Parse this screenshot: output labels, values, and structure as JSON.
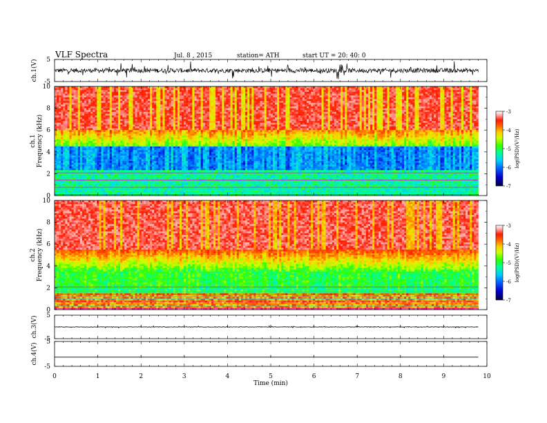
{
  "header": {
    "title": "VLF  Spectra",
    "date": "Jul.  8  , 2015",
    "station": "station= ATH",
    "start": "start  UT  =   20: 40: 0"
  },
  "chart_data": [
    {
      "type": "line",
      "panel": "ch1-waveform",
      "ylabel": "ch.1(V)",
      "ylim": [
        -5,
        5
      ],
      "yticks": [
        "5",
        "-5"
      ],
      "baseline": 0,
      "amplitude": 2.0,
      "x_end": 9.8
    },
    {
      "type": "heatmap",
      "panel": "ch1-spectrogram",
      "ylabel_channel": "ch.1",
      "ylabel": "Frequency  (kHz)",
      "ylim": [
        0,
        10
      ],
      "yticks": [
        "0",
        "2",
        "4",
        "6",
        "8",
        "10"
      ],
      "x_end": 9.8,
      "colorbar_label": "log(PSD)(V²/Hz)",
      "colorbar_ticks": [
        "-3",
        "-4",
        "-5",
        "-6",
        "-7"
      ],
      "clim": [
        -7,
        -3
      ]
    },
    {
      "type": "heatmap",
      "panel": "ch2-spectrogram",
      "ylabel_channel": "ch.2",
      "ylabel": "Frequency  (kHz)",
      "ylim": [
        0,
        10
      ],
      "yticks": [
        "0",
        "2",
        "4",
        "6",
        "8",
        "10"
      ],
      "x_end": 9.8,
      "colorbar_label": "log(PSD)(V²/Hz)",
      "colorbar_ticks": [
        "-3",
        "-4",
        "-5",
        "-6",
        "-7"
      ],
      "clim": [
        -7,
        -3
      ]
    },
    {
      "type": "line",
      "panel": "ch3-waveform",
      "ylabel": "ch.3(V)",
      "ylim": [
        -5,
        5
      ],
      "yticks": [
        "5",
        "-5"
      ],
      "baseline": 0,
      "amplitude": 0.2,
      "x_end": 9.8
    },
    {
      "type": "line",
      "panel": "ch4-waveform",
      "ylabel": "ch.4(V)",
      "ylim": [
        -5,
        5
      ],
      "yticks": [
        "5",
        "-5"
      ],
      "baseline": -1.3,
      "amplitude": 0.0,
      "x_end": 9.8
    }
  ],
  "xaxis": {
    "label": "Time  (min)",
    "ticks": [
      "0",
      "1",
      "2",
      "3",
      "4",
      "5",
      "6",
      "7",
      "8",
      "9",
      "10"
    ],
    "xlim": [
      0,
      10
    ]
  },
  "colors": {
    "colormap": [
      "#000044",
      "#0000cc",
      "#0066ff",
      "#00ccff",
      "#00ff99",
      "#33ff00",
      "#ccff00",
      "#ffcc00",
      "#ff6600",
      "#ff1a00",
      "#ffaaaa",
      "#ffffff"
    ]
  }
}
